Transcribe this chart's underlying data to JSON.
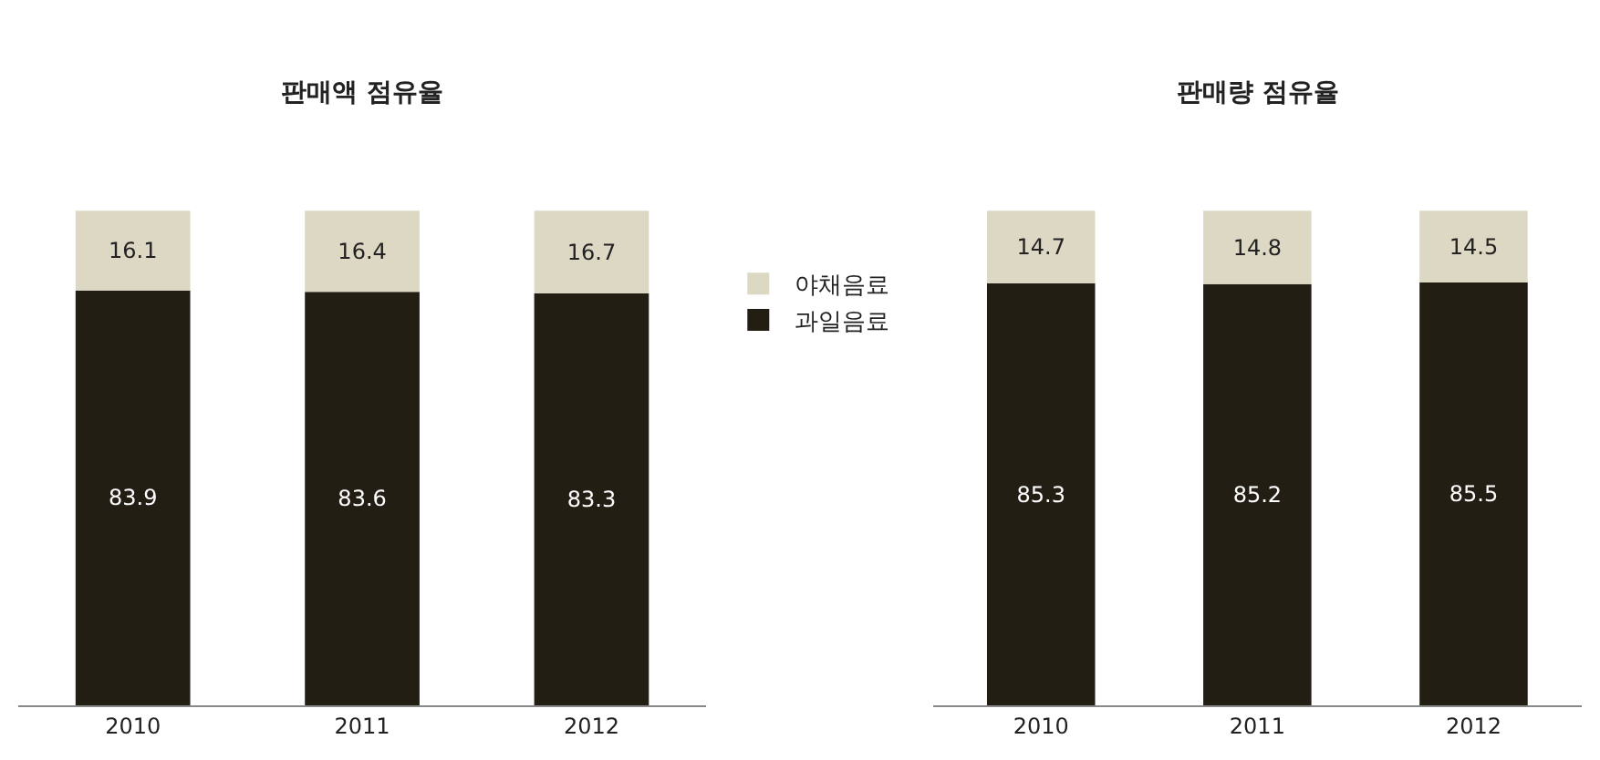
{
  "chart_data": [
    {
      "type": "bar",
      "title": "판매액 점유율",
      "categories": [
        "2010",
        "2011",
        "2012"
      ],
      "stacked": true,
      "data_labels": true,
      "legend": "right",
      "series": [
        {
          "name": "과일음료",
          "color": "#221e14",
          "values": [
            83.9,
            83.6,
            83.3
          ]
        },
        {
          "name": "야채음료",
          "color": "#ddd8c4",
          "values": [
            16.1,
            16.4,
            16.7
          ]
        }
      ]
    },
    {
      "type": "bar",
      "title": "판매량 점유율",
      "categories": [
        "2010",
        "2011",
        "2012"
      ],
      "stacked": true,
      "data_labels": true,
      "series": [
        {
          "color": "#221e14",
          "values": [
            85.3,
            85.2,
            85.5
          ]
        },
        {
          "color": "#ddd8c4",
          "values": [
            14.7,
            14.8,
            14.5
          ]
        }
      ]
    }
  ]
}
